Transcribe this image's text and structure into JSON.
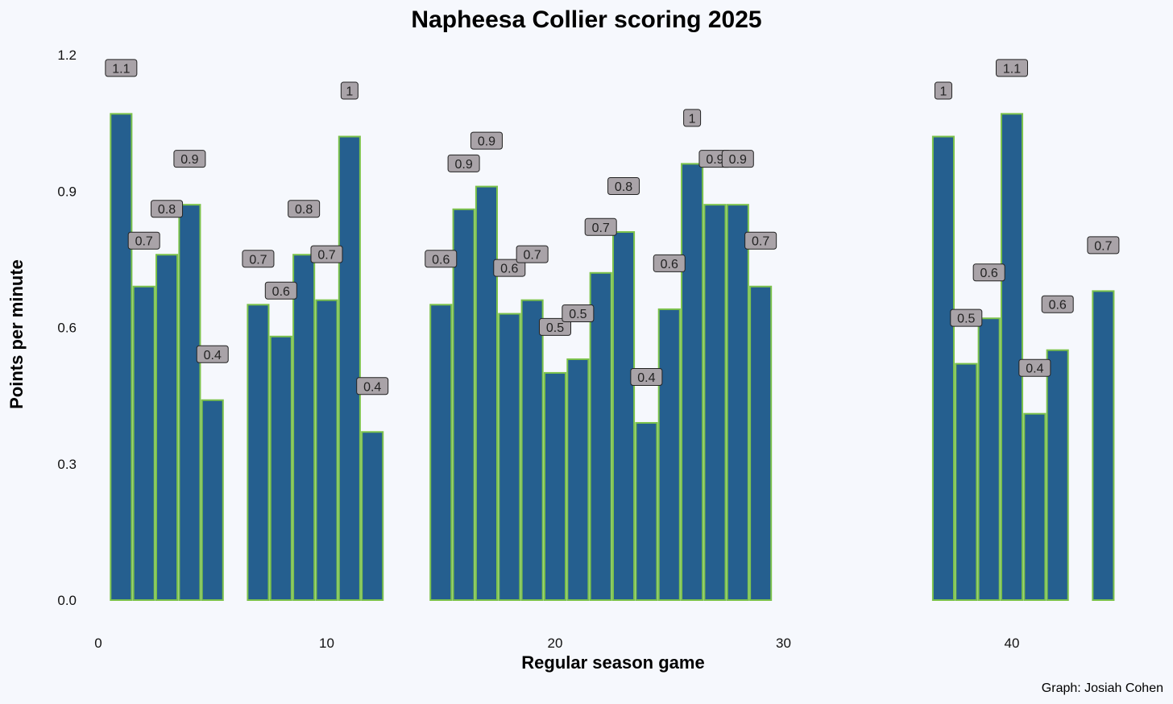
{
  "colors": {
    "background": "#f6f8fd",
    "bar_fill": "#255f8f",
    "bar_stroke": "#7cc24b",
    "label_fill": "#a9a3a8",
    "label_stroke": "#222222"
  },
  "chart_data": {
    "type": "bar",
    "title": "Napheesa Collier scoring 2025",
    "xlabel": "Regular season game",
    "ylabel": "Points per minute",
    "caption": "Graph: Josiah Cohen",
    "xlim": [
      -0.7,
      45.5
    ],
    "ylim": [
      -0.04,
      1.21
    ],
    "x_ticks": [
      0,
      10,
      20,
      30,
      40
    ],
    "x_tick_labels": [
      "0",
      "10",
      "20",
      "30",
      "40"
    ],
    "y_ticks": [
      0.0,
      0.3,
      0.6,
      0.9,
      1.2
    ],
    "y_tick_labels": [
      "0.0",
      "0.3",
      "0.6",
      "0.9",
      "1.2"
    ],
    "grid": false,
    "legend": "none",
    "x": [
      1,
      2,
      3,
      4,
      5,
      7,
      8,
      9,
      10,
      11,
      12,
      15,
      16,
      17,
      18,
      19,
      20,
      21,
      22,
      23,
      24,
      25,
      26,
      27,
      28,
      29,
      37,
      38,
      39,
      40,
      41,
      42,
      44
    ],
    "values": [
      1.07,
      0.69,
      0.76,
      0.87,
      0.44,
      0.65,
      0.58,
      0.76,
      0.66,
      1.02,
      0.37,
      0.65,
      0.86,
      0.91,
      0.63,
      0.66,
      0.5,
      0.53,
      0.72,
      0.81,
      0.39,
      0.64,
      0.96,
      0.87,
      0.87,
      0.69,
      1.02,
      0.52,
      0.62,
      1.07,
      0.41,
      0.55,
      0.68
    ],
    "data_labels": [
      "1.1",
      "0.7",
      "0.8",
      "0.9",
      "0.4",
      "0.7",
      "0.6",
      "0.8",
      "0.7",
      "1",
      "0.4",
      "0.6",
      "0.9",
      "0.9",
      "0.6",
      "0.7",
      "0.5",
      "0.5",
      "0.7",
      "0.8",
      "0.4",
      "0.6",
      "1",
      "0.9",
      "0.9",
      "0.7",
      "1",
      "0.5",
      "0.6",
      "1.1",
      "0.4",
      "0.6",
      "0.7"
    ]
  }
}
